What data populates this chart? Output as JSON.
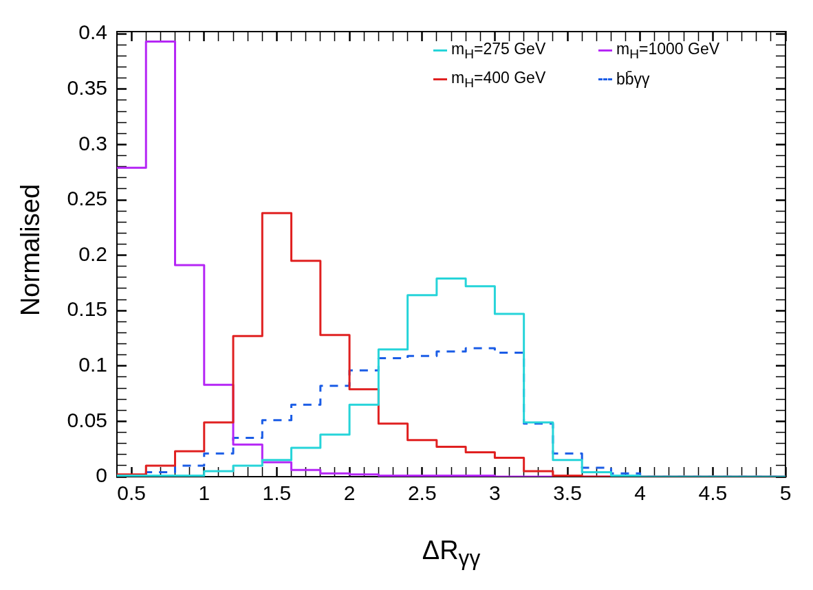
{
  "chart_data": {
    "type": "histogram",
    "xlabel": "ΔR$_{γγ}$",
    "ylabel": "Normalised",
    "bins": [
      0.4,
      0.6,
      0.8,
      1.0,
      1.2,
      1.4,
      1.6,
      1.8,
      2.0,
      2.2,
      2.4,
      2.6,
      2.8,
      3.0,
      3.2,
      3.4,
      3.6,
      3.8,
      4.0,
      4.2,
      4.4,
      4.6,
      4.8,
      5.0
    ],
    "series": [
      {
        "name": "m$_{H}$=275 GeV",
        "color": "#26d4d9",
        "line_style": "solid",
        "values": [
          0.001,
          0.001,
          0.001,
          0.005,
          0.01,
          0.015,
          0.026,
          0.038,
          0.065,
          0.115,
          0.164,
          0.179,
          0.172,
          0.147,
          0.049,
          0.015,
          0.004,
          0.001,
          0,
          0,
          0,
          0,
          0
        ]
      },
      {
        "name": "m$_{H}$=400 GeV",
        "color": "#e02020",
        "line_style": "solid",
        "values": [
          0.002,
          0.01,
          0.023,
          0.049,
          0.127,
          0.238,
          0.195,
          0.128,
          0.079,
          0.048,
          0.033,
          0.027,
          0.022,
          0.017,
          0.005,
          0.001,
          0,
          0,
          0,
          0,
          0,
          0,
          0
        ]
      },
      {
        "name": "m$_{H}$=1000 GeV",
        "color": "#b526f5",
        "line_style": "solid",
        "values": [
          0.279,
          0.393,
          0.191,
          0.083,
          0.029,
          0.013,
          0.006,
          0.003,
          0.002,
          0.001,
          0.001,
          0.001,
          0.001,
          0,
          0,
          0,
          0,
          0,
          0,
          0,
          0,
          0,
          0
        ]
      },
      {
        "name": "bb̄γγ",
        "color": "#1a5ce6",
        "line_style": "dashed",
        "values": [
          0.001,
          0.004,
          0.01,
          0.021,
          0.035,
          0.051,
          0.065,
          0.082,
          0.096,
          0.107,
          0.109,
          0.113,
          0.116,
          0.112,
          0.048,
          0.021,
          0.008,
          0.003,
          0,
          0,
          0,
          0,
          0
        ]
      }
    ],
    "xlim": [
      0.4,
      5.0
    ],
    "ylim": [
      0,
      0.402
    ],
    "xticks": [
      0.5,
      {
        "value": 0.6,
        "label": null
      },
      {
        "value": 0.7,
        "label": null
      },
      {
        "value": 0.8,
        "label": null
      },
      {
        "value": 0.9,
        "label": null
      },
      1,
      {
        "value": 1.1,
        "label": null
      },
      {
        "value": 1.2,
        "label": null
      },
      {
        "value": 1.3,
        "label": null
      },
      {
        "value": 1.4,
        "label": null
      },
      1.5,
      {
        "value": 1.6,
        "label": null
      },
      {
        "value": 1.7,
        "label": null
      },
      {
        "value": 1.8,
        "label": null
      },
      {
        "value": 1.9,
        "label": null
      },
      2,
      {
        "value": 2.1,
        "label": null
      },
      {
        "value": 2.2,
        "label": null
      },
      {
        "value": 2.3,
        "label": null
      },
      {
        "value": 2.4,
        "label": null
      },
      2.5,
      {
        "value": 2.6,
        "label": null
      },
      {
        "value": 2.7,
        "label": null
      },
      {
        "value": 2.8,
        "label": null
      },
      {
        "value": 2.9,
        "label": null
      },
      3,
      {
        "value": 3.1,
        "label": null
      },
      {
        "value": 3.2,
        "label": null
      },
      {
        "value": 3.3,
        "label": null
      },
      {
        "value": 3.4,
        "label": null
      },
      3.5,
      {
        "value": 3.6,
        "label": null
      },
      {
        "value": 3.7,
        "label": null
      },
      {
        "value": 3.8,
        "label": null
      },
      {
        "value": 3.9,
        "label": null
      },
      4,
      {
        "value": 4.1,
        "label": null
      },
      {
        "value": 4.2,
        "label": null
      },
      {
        "value": 4.3,
        "label": null
      },
      {
        "value": 4.4,
        "label": null
      },
      4.5,
      {
        "value": 4.6,
        "label": null
      },
      {
        "value": 4.7,
        "label": null
      },
      {
        "value": 4.8,
        "label": null
      },
      {
        "value": 4.9,
        "label": null
      },
      5
    ],
    "yticks": [
      0,
      {
        "value": 0.01,
        "label": null
      },
      {
        "value": 0.02,
        "label": null
      },
      {
        "value": 0.03,
        "label": null
      },
      {
        "value": 0.04,
        "label": null
      },
      0.05,
      {
        "value": 0.06,
        "label": null
      },
      {
        "value": 0.07,
        "label": null
      },
      {
        "value": 0.08,
        "label": null
      },
      {
        "value": 0.09,
        "label": null
      },
      0.1,
      {
        "value": 0.11,
        "label": null
      },
      {
        "value": 0.12,
        "label": null
      },
      {
        "value": 0.13,
        "label": null
      },
      {
        "value": 0.14,
        "label": null
      },
      0.15,
      {
        "value": 0.16,
        "label": null
      },
      {
        "value": 0.17,
        "label": null
      },
      {
        "value": 0.18,
        "label": null
      },
      {
        "value": 0.19,
        "label": null
      },
      0.2,
      {
        "value": 0.21,
        "label": null
      },
      {
        "value": 0.22,
        "label": null
      },
      {
        "value": 0.23,
        "label": null
      },
      {
        "value": 0.24,
        "label": null
      },
      0.25,
      {
        "value": 0.26,
        "label": null
      },
      {
        "value": 0.27,
        "label": null
      },
      {
        "value": 0.28,
        "label": null
      },
      {
        "value": 0.29,
        "label": null
      },
      0.3,
      {
        "value": 0.31,
        "label": null
      },
      {
        "value": 0.32,
        "label": null
      },
      {
        "value": 0.33,
        "label": null
      },
      {
        "value": 0.34,
        "label": null
      },
      0.35,
      {
        "value": 0.36,
        "label": null
      },
      {
        "value": 0.37,
        "label": null
      },
      {
        "value": 0.38,
        "label": null
      },
      {
        "value": 0.39,
        "label": null
      },
      0.4
    ],
    "grid": false,
    "legend": "top right"
  }
}
